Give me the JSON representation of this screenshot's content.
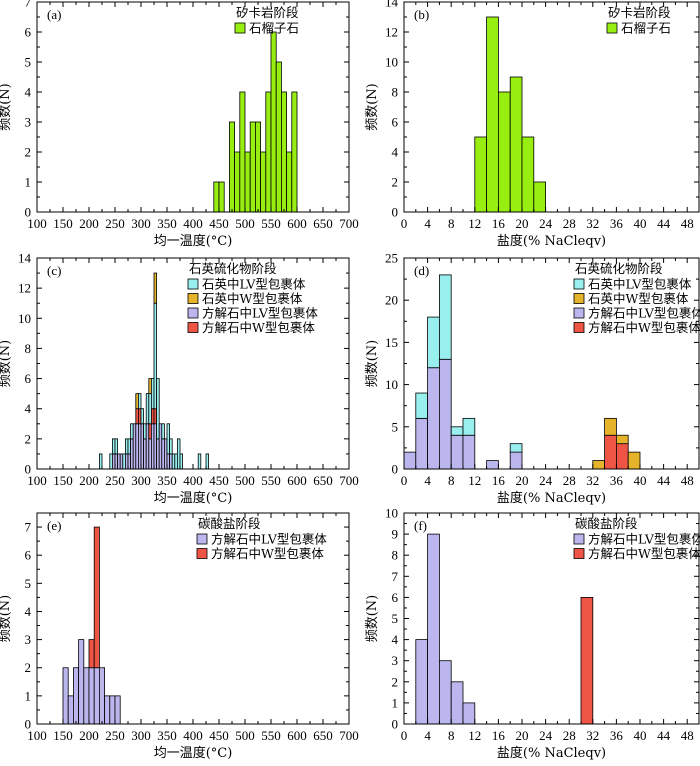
{
  "colors": {
    "garnet": "#99ee11",
    "quartz_lv": "#99eeee",
    "quartz_w": "#e6b42a",
    "calcite_lv": "#bbb7ee",
    "calcite_w": "#ee5544"
  },
  "chart_data": [
    {
      "panel": "(a)",
      "type": "bar",
      "stacked": true,
      "xlabel": "均一温度(°C)",
      "ylabel": "频数(N)",
      "xlim": [
        100,
        700
      ],
      "xticks": [
        100,
        150,
        200,
        250,
        300,
        350,
        400,
        450,
        500,
        550,
        600,
        650,
        700
      ],
      "ylim": [
        0,
        7
      ],
      "yticks": [
        0,
        1,
        2,
        3,
        4,
        5,
        6,
        7
      ],
      "bin_width": 10,
      "legend_title": "矽卡岩阶段",
      "legend_position": "top-right",
      "x": [
        440,
        450,
        460,
        470,
        480,
        490,
        500,
        510,
        520,
        530,
        540,
        550,
        560,
        570,
        580,
        590
      ],
      "series": [
        {
          "name": "石榴子石",
          "color": "#99ee11",
          "values": [
            1,
            1,
            0,
            3,
            2,
            4,
            2,
            3,
            3,
            2,
            4,
            6,
            5,
            4,
            2,
            4
          ]
        }
      ]
    },
    {
      "panel": "(b)",
      "type": "bar",
      "stacked": true,
      "xlabel": "盐度(% NaCleqv)",
      "ylabel": "频数(N)",
      "xlim": [
        0,
        50
      ],
      "xticks": [
        0,
        4,
        8,
        12,
        16,
        20,
        24,
        28,
        32,
        36,
        40,
        44,
        48
      ],
      "ylim": [
        0,
        14
      ],
      "yticks": [
        0,
        2,
        4,
        6,
        8,
        10,
        12,
        14
      ],
      "bin_width": 2,
      "legend_title": "矽卡岩阶段",
      "legend_position": "top-right",
      "x": [
        12,
        14,
        16,
        18,
        20,
        22
      ],
      "series": [
        {
          "name": "石榴子石",
          "color": "#99ee11",
          "values": [
            5,
            13,
            8,
            9,
            5,
            2
          ]
        }
      ]
    },
    {
      "panel": "(c)",
      "type": "bar",
      "stacked": true,
      "xlabel": "均一温度(°C)",
      "ylabel": "频数(N)",
      "xlim": [
        100,
        700
      ],
      "xticks": [
        100,
        150,
        200,
        250,
        300,
        350,
        400,
        450,
        500,
        550,
        600,
        650,
        700
      ],
      "ylim": [
        0,
        14
      ],
      "yticks": [
        0,
        2,
        4,
        6,
        8,
        10,
        12,
        14
      ],
      "bin_width": 5,
      "legend_title": "石英硫化物阶段",
      "legend_position": "top-right",
      "x": [
        220,
        230,
        240,
        245,
        250,
        255,
        260,
        265,
        270,
        275,
        280,
        285,
        290,
        295,
        300,
        305,
        310,
        315,
        320,
        325,
        330,
        335,
        340,
        345,
        350,
        355,
        360,
        365,
        370,
        375,
        410,
        415,
        420,
        425
      ],
      "series": [
        {
          "name": "方解石中LV型包裹体",
          "color": "#bbb7ee",
          "values": [
            0,
            0,
            0,
            1,
            1,
            1,
            1,
            0,
            1,
            1,
            2,
            3,
            3,
            3,
            3,
            2,
            3,
            2,
            3,
            3,
            2,
            3,
            2,
            2,
            1,
            1,
            0,
            0,
            0,
            0,
            0,
            0,
            0,
            0
          ]
        },
        {
          "name": "方解石中W型包裹体",
          "color": "#ee5544",
          "values": [
            0,
            0,
            0,
            0,
            0,
            0,
            0,
            0,
            0,
            0,
            0,
            0,
            1,
            1,
            0,
            0,
            0,
            1,
            1,
            1,
            0,
            0,
            0,
            0,
            0,
            0,
            0,
            0,
            0,
            0,
            0,
            0,
            0,
            0
          ]
        },
        {
          "name": "石英中LV型包裹体",
          "color": "#99eeee",
          "values": [
            1,
            0,
            1,
            1,
            1,
            0,
            0,
            1,
            1,
            1,
            1,
            0,
            0,
            1,
            1,
            1,
            2,
            2,
            2,
            7,
            4,
            0,
            1,
            0,
            2,
            1,
            1,
            1,
            2,
            1,
            1,
            0,
            0,
            1
          ]
        },
        {
          "name": "石英中W型包裹体",
          "color": "#e6b42a",
          "values": [
            0,
            0,
            0,
            0,
            0,
            0,
            0,
            0,
            0,
            0,
            0,
            0,
            1,
            0,
            0,
            0,
            0,
            1,
            0,
            2,
            0,
            0,
            0,
            0,
            0,
            0,
            0,
            0,
            0,
            0,
            0,
            0,
            0,
            0
          ]
        }
      ]
    },
    {
      "panel": "(d)",
      "type": "bar",
      "stacked": true,
      "xlabel": "盐度(% NaCleqv)",
      "ylabel": "频数(N)",
      "xlim": [
        0,
        50
      ],
      "xticks": [
        0,
        4,
        8,
        12,
        16,
        20,
        24,
        28,
        32,
        36,
        40,
        44,
        48
      ],
      "ylim": [
        0,
        25
      ],
      "yticks": [
        0,
        5,
        10,
        15,
        20,
        25
      ],
      "bin_width": 2,
      "legend_title": "石英硫化物阶段",
      "legend_position": "top-right",
      "x": [
        0,
        2,
        4,
        6,
        8,
        10,
        14,
        18,
        32,
        34,
        36,
        38
      ],
      "series": [
        {
          "name": "方解石中LV型包裹体",
          "color": "#bbb7ee",
          "values": [
            2,
            6,
            12,
            13,
            4,
            4,
            1,
            2,
            0,
            0,
            0,
            0
          ]
        },
        {
          "name": "方解石中W型包裹体",
          "color": "#ee5544",
          "values": [
            0,
            0,
            0,
            0,
            0,
            0,
            0,
            0,
            0,
            4,
            3,
            0
          ]
        },
        {
          "name": "石英中LV型包裹体",
          "color": "#99eeee",
          "values": [
            0,
            3,
            6,
            10,
            1,
            2,
            0,
            1,
            0,
            0,
            0,
            0
          ]
        },
        {
          "name": "石英中W型包裹体",
          "color": "#e6b42a",
          "values": [
            0,
            0,
            0,
            0,
            0,
            0,
            0,
            0,
            1,
            2,
            1,
            2
          ]
        }
      ]
    },
    {
      "panel": "(e)",
      "type": "bar",
      "stacked": true,
      "xlabel": "均一温度(°C)",
      "ylabel": "频数(N)",
      "xlim": [
        100,
        700
      ],
      "xticks": [
        100,
        150,
        200,
        250,
        300,
        350,
        400,
        450,
        500,
        550,
        600,
        650,
        700
      ],
      "ylim": [
        0,
        7.5
      ],
      "yticks": [
        0,
        1,
        2,
        3,
        4,
        5,
        6,
        7
      ],
      "bin_width": 10,
      "legend_title": "碳酸盐阶段",
      "legend_position": "top-right",
      "x": [
        150,
        160,
        170,
        180,
        190,
        200,
        210,
        220,
        230,
        240,
        250
      ],
      "series": [
        {
          "name": "方解石中LV型包裹体",
          "color": "#bbb7ee",
          "values": [
            2,
            1,
            2,
            3,
            2,
            2,
            2,
            2,
            1,
            1,
            1
          ]
        },
        {
          "name": "方解石中W型包裹体",
          "color": "#ee5544",
          "values": [
            0,
            0,
            0,
            0,
            0,
            1,
            5,
            0,
            0,
            0,
            0
          ]
        }
      ]
    },
    {
      "panel": "(f)",
      "type": "bar",
      "stacked": true,
      "xlabel": "盐度(% NaCleqv)",
      "ylabel": "频数(N)",
      "xlim": [
        0,
        50
      ],
      "xticks": [
        0,
        4,
        8,
        12,
        16,
        20,
        24,
        28,
        32,
        36,
        40,
        44,
        48
      ],
      "ylim": [
        0,
        10
      ],
      "yticks": [
        0,
        1,
        2,
        3,
        4,
        5,
        6,
        7,
        8,
        9,
        10
      ],
      "bin_width": 2,
      "legend_title": "碳酸盐阶段",
      "legend_position": "top-right",
      "x": [
        2,
        4,
        6,
        8,
        10,
        30
      ],
      "series": [
        {
          "name": "方解石中LV型包裹体",
          "color": "#bbb7ee",
          "values": [
            4,
            9,
            3,
            2,
            1,
            0
          ]
        },
        {
          "name": "方解石中W型包裹体",
          "color": "#ee5544",
          "values": [
            0,
            0,
            0,
            0,
            0,
            6
          ]
        }
      ]
    }
  ]
}
